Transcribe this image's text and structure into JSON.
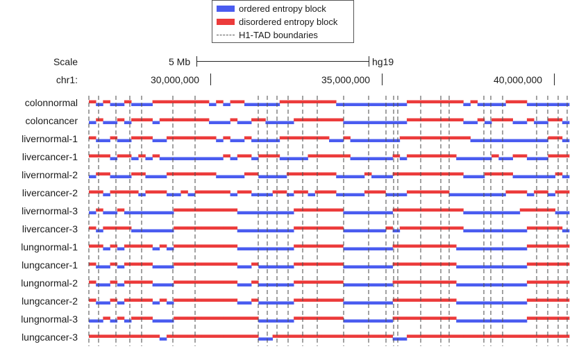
{
  "legend": {
    "ordered_label": "ordered entropy block",
    "disordered_label": "disordered entropy block",
    "boundary_label": "H1-TAD boundaries",
    "ordered_color": "#4a5cf0",
    "disordered_color": "#ec3b3b",
    "boundary_color": "#555555"
  },
  "header": {
    "scale_label": "Scale",
    "scale_value": "5 Mb",
    "assembly": "hg19",
    "chrom_label": "chr1:",
    "positions": [
      "30,000,000",
      "35,000,000",
      "40,000,000"
    ]
  },
  "tracks": [
    {
      "name": "colonnormal",
      "p": "rbrbbrbbbrrrrrrrrbrbrrbbbbbrrrrrrrrbbbbbbbbbbrrrrrrrrbrbbbbrrrbbbbbb"
    },
    {
      "name": "coloncancer",
      "p": "brbbrbrrrbrrrrrrrbbbrbbrrbbbbrrrrrrrbbbbbbbbbrrrrrrrrbbrbrrrbbrbbrrb"
    },
    {
      "name": "livernormal-1",
      "p": "rbbrbbrrrbbrrrrrrrbrbbrbbbbrrrrrrrbbrbbbbbbbrrrrrrrrrrbbbbbbbbbbbrrb"
    },
    {
      "name": "livercancer-1",
      "p": "rrrbrrbrbrbbbbbbbbbrbrrbrrrbbbbrrrrrrbbbbbbrbrrrrrrrbbbbbrbbrrbbbrrr"
    },
    {
      "name": "livernormal-2",
      "p": "brrbbbrrbbbrrrrrrrbbbbrrbbbbrrrrrrrbbbbrbbbrrrrrrrrrrbbbrrrrbbbbbbrb"
    },
    {
      "name": "livercancer-2",
      "p": "rrbrrrrbrrrbbrbrrrrrbrrbbbrrbrrbrrrbbbbrrrbbbrrrrrrbbbbbbbbrrrbrrbrr"
    },
    {
      "name": "livernormal-3",
      "p": "brbbrbbbbbbbrrrrrrrrrbbbbbbbbrrrrrrrbbbbbbbrrrrrrrrrrbbbbbbbbrrrrrbb"
    },
    {
      "name": "livercancer-3",
      "p": "rbrrrrbbbbbbrrrrrrrrrbbbbbbbbrrrrrrrbbbbbbrbrrrrrrrrrbbbbbbbbbrrrrrb"
    },
    {
      "name": "lungnormal-1",
      "p": "rrbrbrrrrbrbrrrrrrrrrbbbbbbbbrrrrrrrbbbbbbbrrrrrrrrrbbbbbbbbbbrrrrrr"
    },
    {
      "name": "lungcancer-1",
      "p": "rbbrbrrrrbbbrrrrrrrrrbbrbbbbbrrrrrrrbbbbbbbrrrrrrrrrbbbbbbbbbbrrrrrr"
    },
    {
      "name": "lungnormal-2",
      "p": "rbbrbrrrrbbbrrrrrrrrrbbrbbbbbrrrrrrrbbbbbbbrrrrrrrrrbbbbbbbbbbrrrrrr"
    },
    {
      "name": "lungcancer-2",
      "p": "rbbrbrrrrbrbrrrrrrrrrbbrbbbbbrrrrrrrbbbbbbbrrrrrrrrrbbbbbbbbbbrrrrrr"
    },
    {
      "name": "lungnormal-3",
      "p": "bbrbrbrrrbbbrrrrrrrrrrrrbbbbbrrrrrrrbbbbbbbrrrrrrrrrbbbbbbbbbbrrrrrr"
    },
    {
      "name": "lungcancer-3",
      "p": "rrrrrrrrrrbrrrrrrrrrrrrrbbrrrrrrrrrrrrrrrrrbbrrrrrrrrrrrrrrrrrrrrrrr"
    }
  ]
}
